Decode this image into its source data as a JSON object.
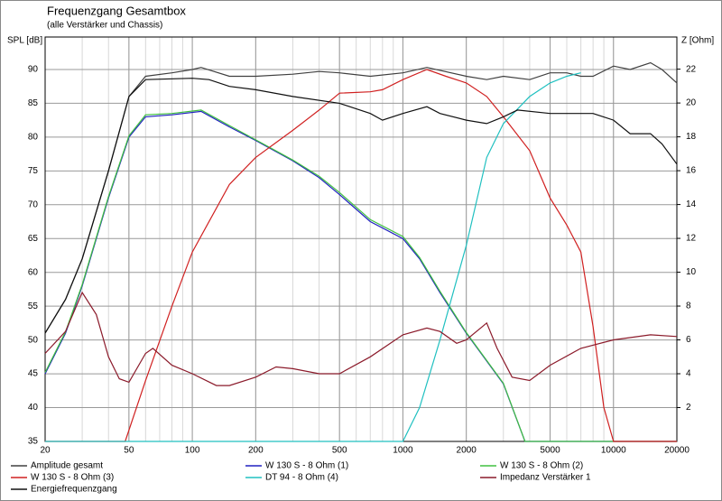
{
  "chart_data": {
    "type": "line",
    "title": "Frequenzgang Gesamtbox",
    "subtitle": "(alle Verstärker und Chassis)",
    "y_label": "SPL [dB]",
    "y2_label": "Z [Ohm]",
    "log_x": true,
    "grid": true,
    "xlim": [
      20,
      20000
    ],
    "xticks": [
      20,
      50,
      100,
      200,
      500,
      1000,
      2000,
      5000,
      10000,
      20000
    ],
    "ylim": [
      35,
      94.8
    ],
    "yticks": [
      35,
      40,
      45,
      50,
      55,
      60,
      65,
      70,
      75,
      80,
      85,
      90
    ],
    "y2lim": [
      0,
      23.9
    ],
    "y2ticks": [
      2,
      4,
      6,
      8,
      10,
      12,
      14,
      16,
      18,
      20,
      22
    ],
    "series": [
      {
        "name": "Amplitude gesamt",
        "color": "#404040",
        "x": [
          20,
          25,
          30,
          40,
          50,
          60,
          80,
          100,
          110,
          150,
          200,
          300,
          400,
          500,
          700,
          1000,
          1300,
          2000,
          2500,
          3000,
          4000,
          5000,
          6000,
          7000,
          8000,
          10000,
          12000,
          15000,
          17000,
          20000
        ],
        "values": [
          51,
          56,
          62,
          75,
          86,
          89,
          89.5,
          90,
          90.3,
          89,
          89,
          89.3,
          89.7,
          89.5,
          89,
          89.5,
          90.3,
          89,
          88.5,
          89,
          88.5,
          89.5,
          89.5,
          89,
          89,
          90.5,
          90,
          91,
          90,
          88
        ]
      },
      {
        "name": "W 130 S - 8 Ohm (1)",
        "color": "#2020c0",
        "x": [
          20,
          25,
          30,
          40,
          50,
          60,
          80,
          110,
          150,
          200,
          300,
          400,
          500,
          700,
          1000,
          1200,
          1500,
          2000,
          3000,
          3800,
          20000
        ],
        "values": [
          45,
          51,
          58,
          71,
          80,
          83,
          83.3,
          83.8,
          81.5,
          79.5,
          76.5,
          74,
          71.5,
          67.5,
          65,
          62,
          57,
          51,
          43.5,
          35,
          35
        ]
      },
      {
        "name": "W 130 S - 8 Ohm (2)",
        "color": "#40c040",
        "x": [
          20,
          25,
          30,
          40,
          50,
          60,
          80,
          110,
          150,
          200,
          300,
          400,
          500,
          700,
          1000,
          1200,
          1500,
          2000,
          3000,
          3800,
          20000
        ],
        "values": [
          45.2,
          51.2,
          58.2,
          71.2,
          80.2,
          83.3,
          83.5,
          84,
          81.7,
          79.6,
          76.6,
          74.2,
          71.8,
          67.8,
          65.3,
          62.2,
          57.2,
          51.1,
          43.6,
          35,
          35
        ]
      },
      {
        "name": "W 130 S - 8 Ohm (3)",
        "color": "#d02020",
        "x": [
          20,
          48,
          60,
          80,
          100,
          150,
          200,
          300,
          400,
          500,
          700,
          800,
          1000,
          1300,
          1600,
          2000,
          2500,
          3000,
          4000,
          5000,
          6000,
          7000,
          8000,
          9000,
          10000,
          20000
        ],
        "values": [
          35,
          35,
          44,
          55,
          63,
          73,
          77,
          81,
          84,
          86.5,
          86.7,
          87,
          88.5,
          90,
          89,
          88,
          86,
          83,
          78,
          71,
          67,
          63,
          52,
          40,
          35,
          35
        ]
      },
      {
        "name": "DT 94 - 8 Ohm (4)",
        "color": "#20c0c0",
        "x": [
          20,
          1000,
          1200,
          1500,
          2000,
          2500,
          3000,
          4000,
          5000,
          6000,
          7000
        ],
        "values": [
          35,
          35,
          40,
          50,
          64,
          77,
          82,
          86,
          88,
          89,
          89.5
        ]
      },
      {
        "name": "Impedanz Verstärker 1",
        "color": "#8b1a2a",
        "axis": "y2",
        "x": [
          20,
          25,
          30,
          35,
          40,
          45,
          50,
          60,
          65,
          80,
          100,
          130,
          150,
          200,
          250,
          300,
          400,
          500,
          700,
          1000,
          1300,
          1500,
          1800,
          2000,
          2500,
          2800,
          3300,
          4000,
          5000,
          7000,
          10000,
          15000,
          20000
        ],
        "values": [
          5.2,
          6.5,
          8.8,
          7.5,
          5,
          3.7,
          3.5,
          5.2,
          5.5,
          4.5,
          4,
          3.3,
          3.3,
          3.8,
          4.4,
          4.3,
          4,
          4,
          5,
          6.3,
          6.7,
          6.5,
          5.8,
          6,
          7,
          5.5,
          3.8,
          3.6,
          4.5,
          5.5,
          6,
          6.3,
          6.2
        ]
      },
      {
        "name": "Energiefrequenzgang",
        "color": "#101010",
        "x": [
          20,
          25,
          30,
          40,
          50,
          60,
          100,
          120,
          150,
          200,
          300,
          500,
          700,
          800,
          1000,
          1300,
          1500,
          2000,
          2500,
          3000,
          3500,
          5000,
          8000,
          10000,
          12000,
          15000,
          17000,
          20000
        ],
        "values": [
          51,
          56,
          62,
          75,
          86,
          88.5,
          88.7,
          88.5,
          87.5,
          87,
          86,
          85,
          83.5,
          82.5,
          83.5,
          84.5,
          83.5,
          82.5,
          82,
          83,
          84,
          83.5,
          83.5,
          82.5,
          80.5,
          80.5,
          79,
          76
        ]
      }
    ]
  }
}
